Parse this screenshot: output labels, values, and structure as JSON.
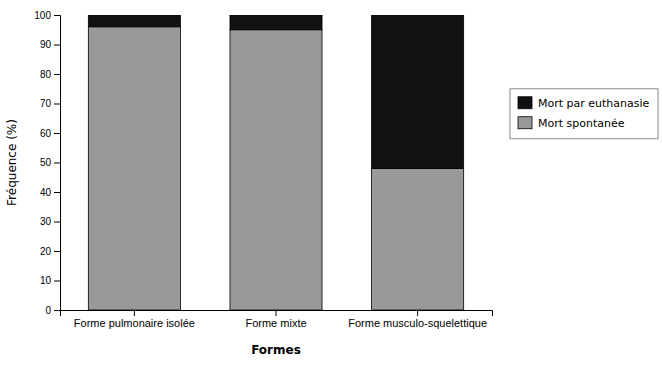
{
  "chart_data": {
    "type": "bar",
    "stacked": true,
    "categories": [
      "Forme pulmonaire isolée",
      "Forme mixte",
      "Forme musculo-squelettique"
    ],
    "series": [
      {
        "name": "Mort spontanée",
        "color": "#999999",
        "values": [
          96,
          95,
          48
        ]
      },
      {
        "name": "Mort par euthanasie",
        "color": "#111111",
        "values": [
          4,
          5,
          52
        ]
      }
    ],
    "xlabel": "Formes",
    "ylabel": "Fréquence (%)",
    "ylim": [
      0,
      100
    ],
    "yticks": [
      0,
      10,
      20,
      30,
      40,
      50,
      60,
      70,
      80,
      90,
      100
    ],
    "grid": false,
    "legend": "right"
  }
}
